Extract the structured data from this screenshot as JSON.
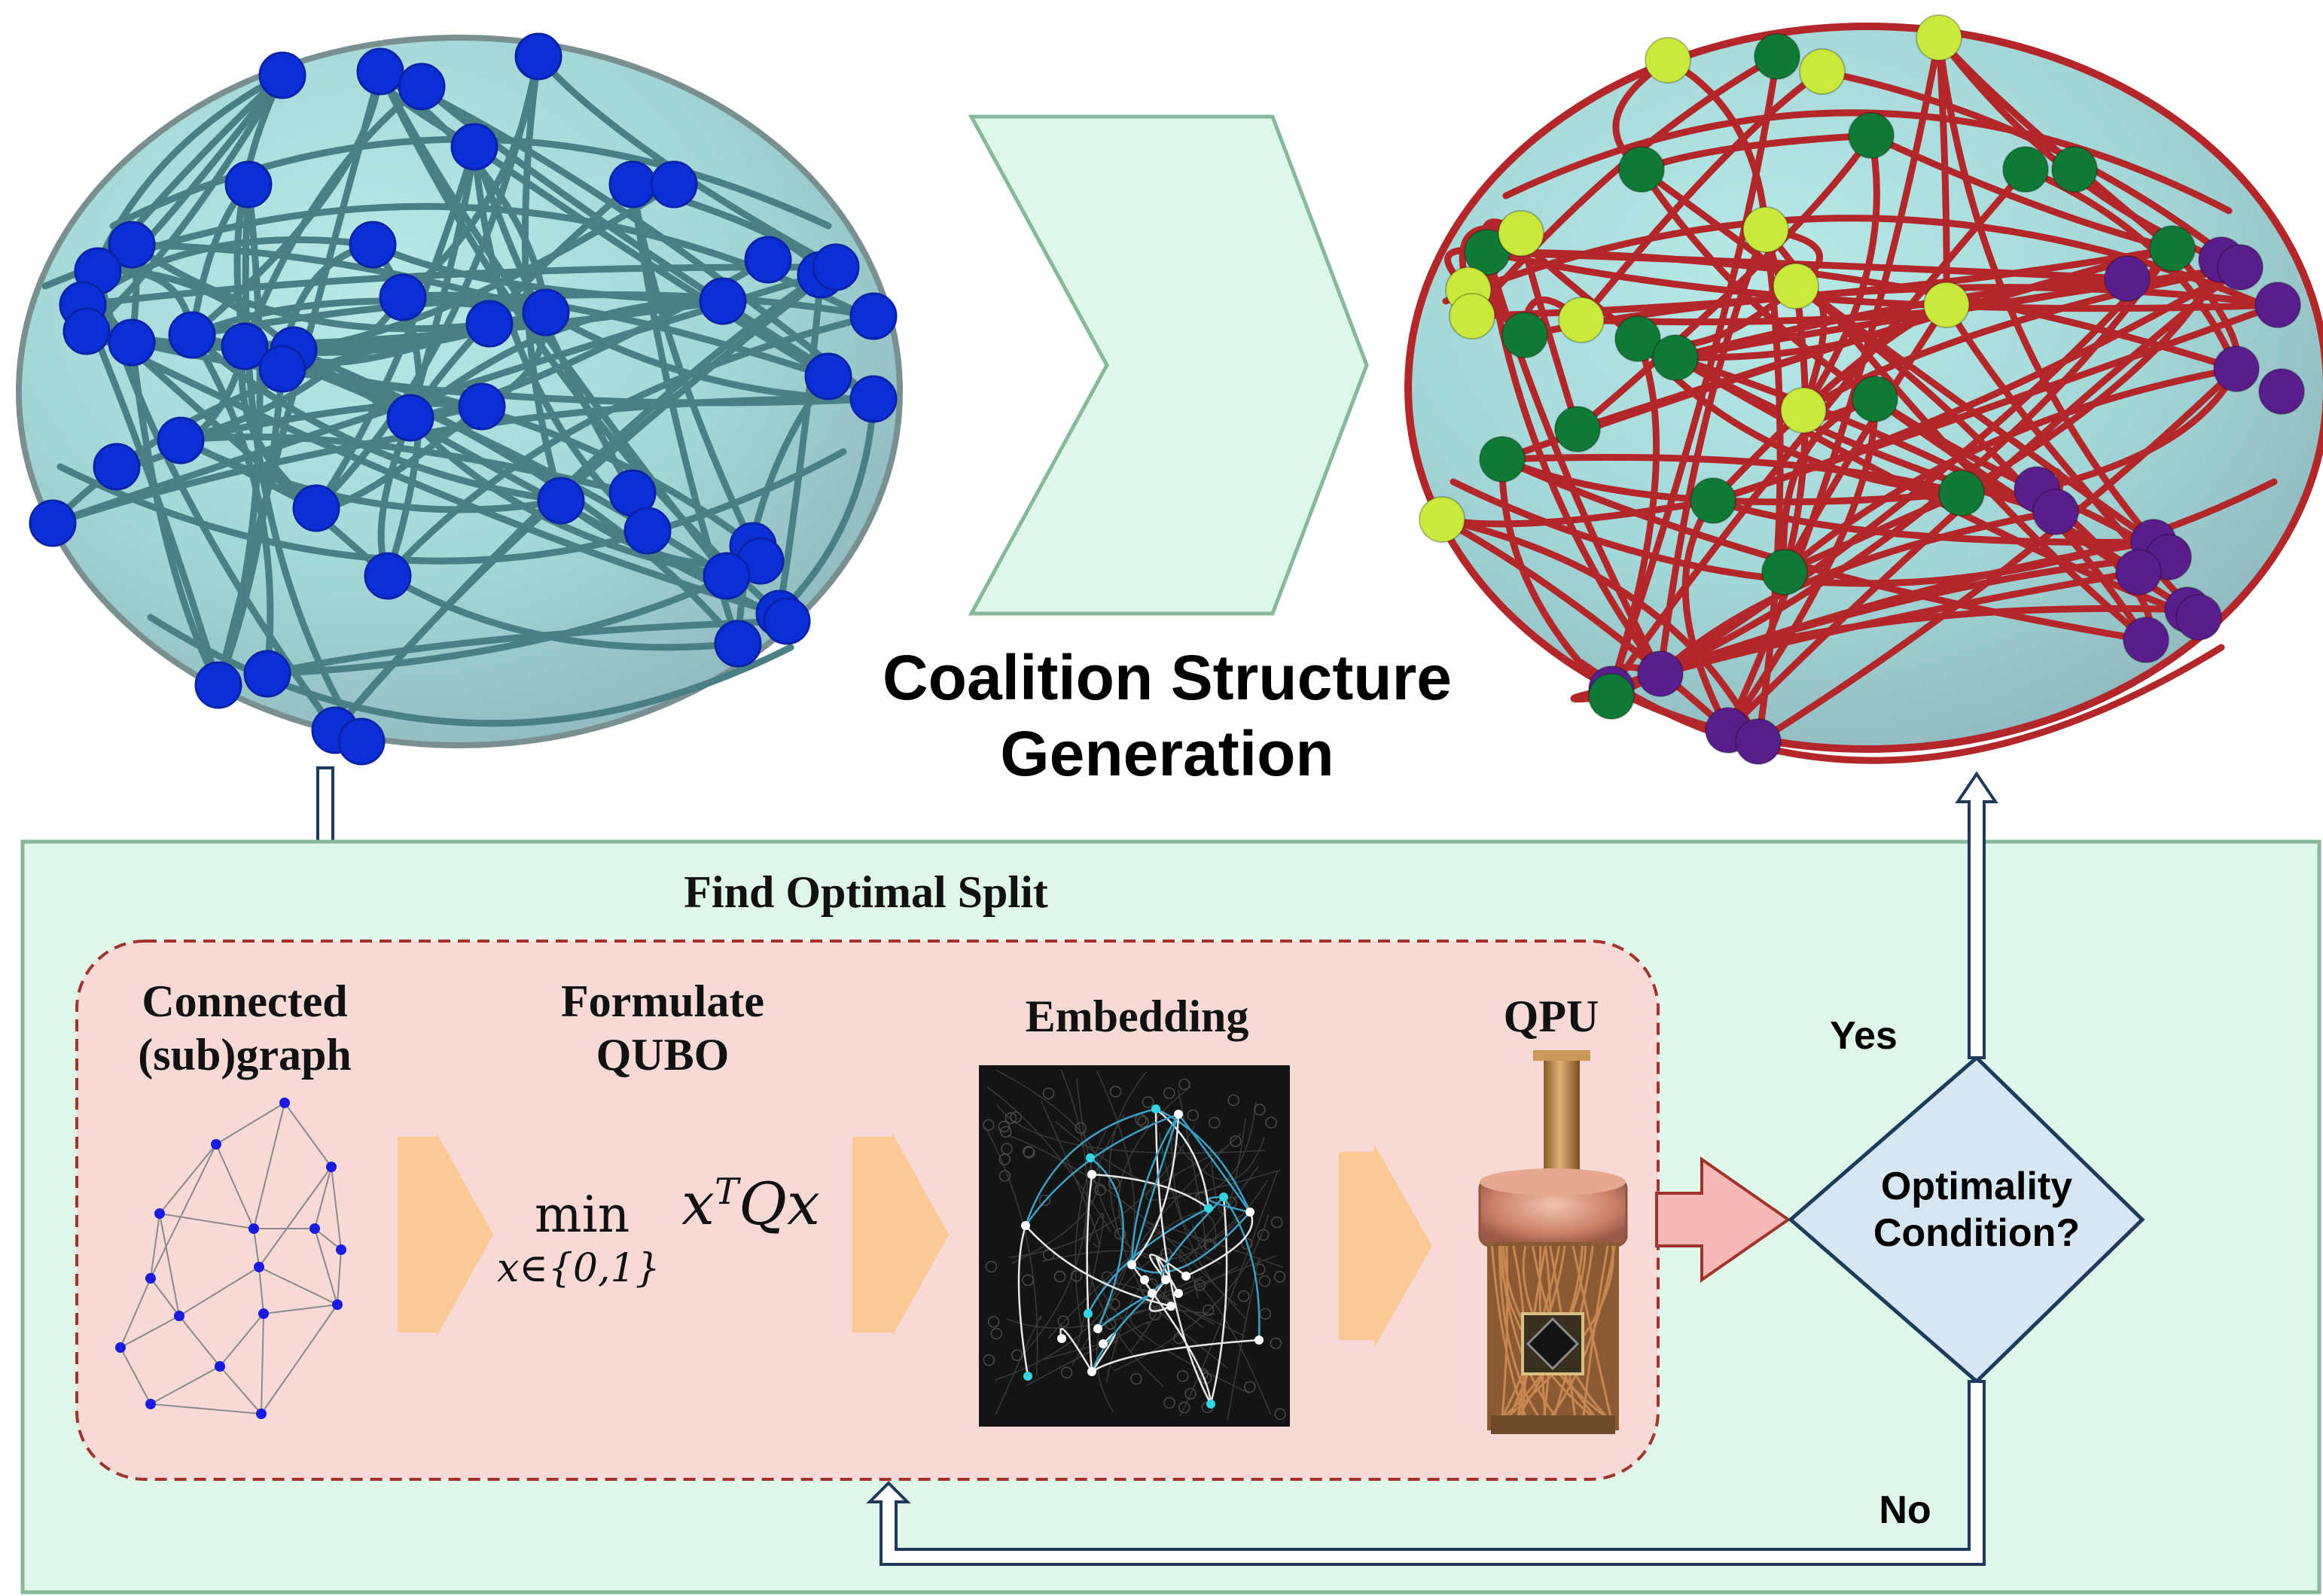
{
  "title": {
    "line1": "Coalition Structure",
    "line2": "Generation"
  },
  "panel": {
    "title": "Find Optimal Split"
  },
  "steps": {
    "connected": {
      "line1": "Connected",
      "line2": "(sub)graph"
    },
    "formulate": {
      "line1": "Formulate",
      "line2": "QUBO"
    },
    "embedding": {
      "label": "Embedding"
    },
    "qpu": {
      "label": "QPU"
    }
  },
  "formula": {
    "min": "min",
    "subscript": "x∈{0,1}",
    "expr_base": "x",
    "expr_sup": "T",
    "expr_rest": "Qx"
  },
  "decision": {
    "line1": "Optimality",
    "line2": "Condition?",
    "yes": "Yes",
    "no": "No"
  },
  "colors": {
    "node_blue": "#0a2fd6",
    "edge_teal": "#4a7f86",
    "sphere": "#a9dcdc",
    "edge_red": "#b3262a",
    "coalition_green": "#0f7a35",
    "coalition_yellow": "#c9ea3c",
    "coalition_purple": "#5a1e8c",
    "panel_bg": "#dff7e8",
    "inner_bg": "#f7d9d6",
    "arrow_orange": "#fcc896",
    "decision_fill": "#d6e6f2",
    "flow_arrow": "#1f3a5a"
  }
}
